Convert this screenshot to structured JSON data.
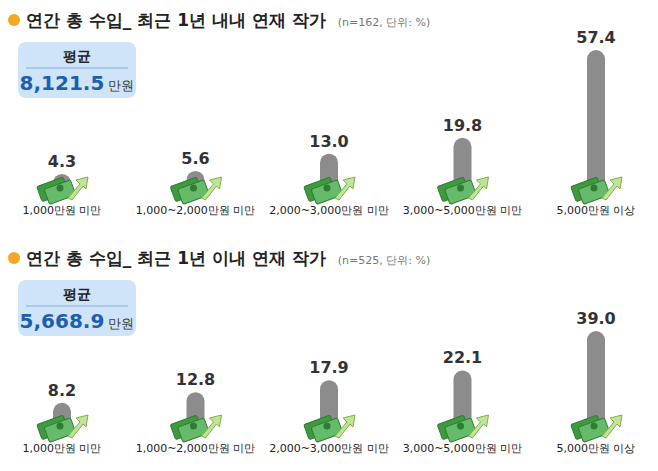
{
  "chart_data": [
    {
      "type": "bar",
      "title": "연간 총 수입_ 최근 1년 내내 연재 작가",
      "subtitle": "(n=162, 단위: %)",
      "annotations": [
        {
          "title": "평균",
          "text": "8,121.5",
          "unit": "만원"
        }
      ],
      "categories": [
        "1,000만원 미만",
        "1,000~2,000만원 미만",
        "2,000~3,000만원 미만",
        "3,000~5,000만원 미만",
        "5,000만원 이상"
      ],
      "values": [
        4.3,
        5.6,
        13.0,
        19.8,
        57.4
      ],
      "value_labels": [
        "4.3",
        "5.6",
        "13.0",
        "19.8",
        "57.4"
      ],
      "color": "#8c8c8c",
      "ylim": [
        0,
        60
      ],
      "data_labels": true,
      "tick_labels": false,
      "grid": false
    },
    {
      "type": "bar",
      "title": "연간 총 수입_ 최근 1년 이내 연재 작가",
      "subtitle": "(n=525, 단위: %)",
      "annotations": [
        {
          "title": "평균",
          "text": "5,668.9",
          "unit": "만원"
        }
      ],
      "categories": [
        "1,000만원 미만",
        "1,000~2,000만원 미만",
        "2,000~3,000만원 미만",
        "3,000~5,000만원 미만",
        "5,000만원 이상"
      ],
      "values": [
        8.2,
        12.8,
        17.9,
        22.1,
        39.0
      ],
      "value_labels": [
        "8.2",
        "12.8",
        "17.9",
        "22.1",
        "39.0"
      ],
      "color": "#8c8c8c",
      "ylim": [
        0,
        60
      ],
      "data_labels": true,
      "tick_labels": false,
      "grid": false
    }
  ]
}
